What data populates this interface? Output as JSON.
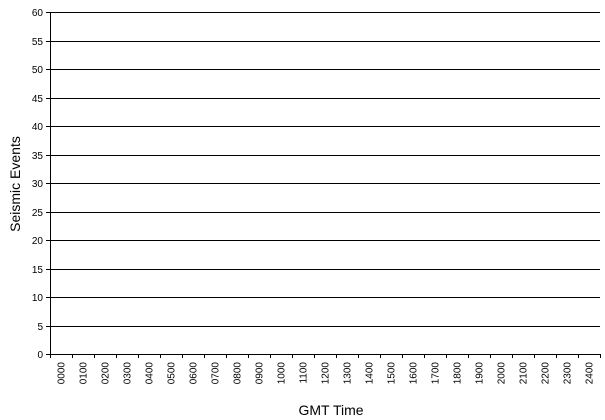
{
  "chart_data": {
    "type": "bar",
    "title": "",
    "xlabel": "GMT Time",
    "ylabel": "Seismic Events",
    "ylim": [
      0,
      60
    ],
    "y_ticks": [
      0,
      5,
      10,
      15,
      20,
      25,
      30,
      35,
      40,
      45,
      50,
      55,
      60
    ],
    "categories": [
      "0000",
      "0100",
      "0200",
      "0300",
      "0400",
      "0500",
      "0600",
      "0700",
      "0800",
      "0900",
      "1000",
      "1100",
      "1200",
      "1300",
      "1400",
      "1500",
      "1600",
      "1700",
      "1800",
      "1900",
      "2000",
      "2100",
      "2200",
      "2300",
      "2400"
    ],
    "values": [
      0,
      0,
      0,
      0,
      0,
      0,
      0,
      0,
      0,
      0,
      0,
      0,
      0,
      0,
      0,
      0,
      0,
      0,
      0,
      0,
      0,
      0,
      0,
      0,
      0
    ],
    "grid": true,
    "legend": false
  },
  "colors": {
    "grid": "#000000",
    "axis": "#000000",
    "bar": "#000080"
  }
}
